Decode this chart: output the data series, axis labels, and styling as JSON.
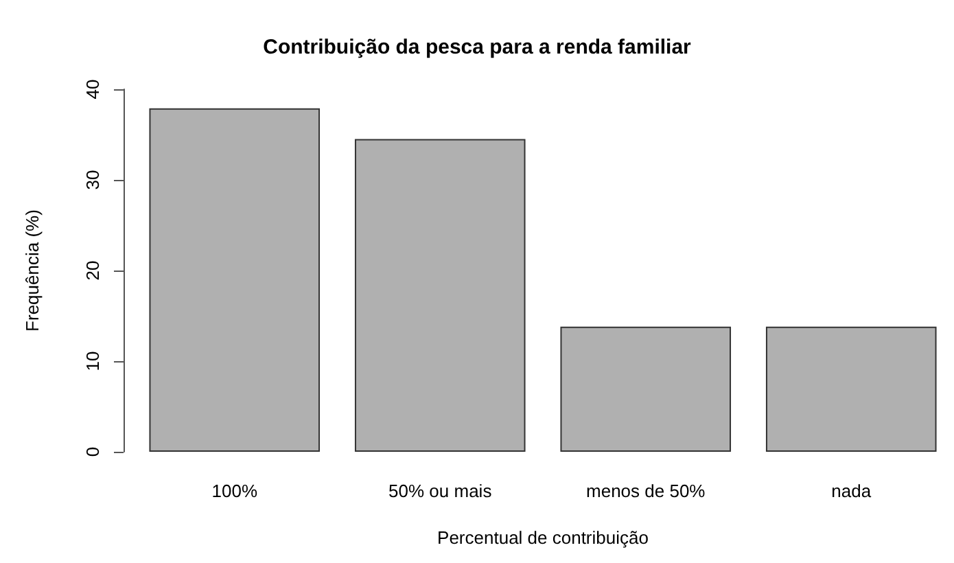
{
  "chart_data": {
    "type": "bar",
    "title": "Contribuição da pesca para a renda familiar",
    "xlabel": "Percentual de contribuição",
    "ylabel": "Frequência (%)",
    "categories": [
      "100%",
      "50% ou mais",
      "menos de 50%",
      "nada"
    ],
    "values": [
      37.9,
      34.5,
      13.8,
      13.8
    ],
    "color": "#b0b0b0",
    "ylim": [
      0,
      40
    ],
    "yticks": [
      0,
      10,
      20,
      30,
      40
    ],
    "grid": false
  }
}
